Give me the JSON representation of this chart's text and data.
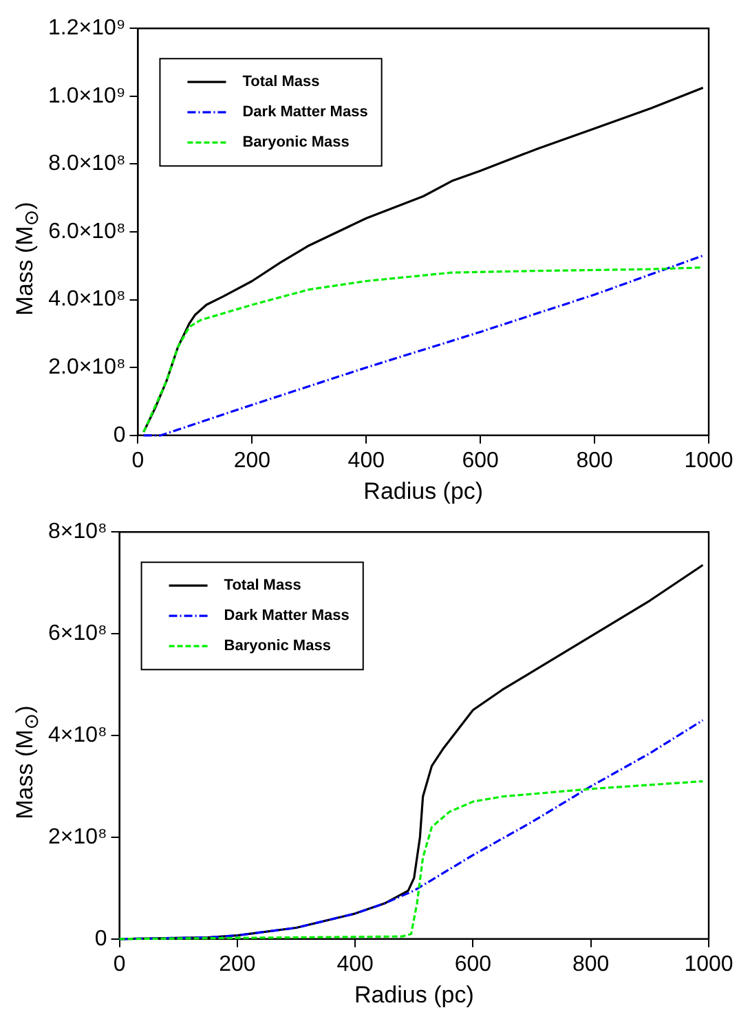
{
  "chart_data": [
    {
      "type": "line",
      "xlabel": "Radius (pc)",
      "ylabel": "Mass (M$_{⊙}$)",
      "legend": "top left",
      "grid": false,
      "marker": "none",
      "xlim": [
        0,
        1000
      ],
      "xticks": [
        0,
        200,
        400,
        600,
        800,
        1000
      ],
      "ylim": [
        0,
        1200000000
      ],
      "yticks": [
        {
          "value": 0,
          "label": "0"
        },
        {
          "value": 200000000,
          "label": "2.0×10⁸"
        },
        {
          "value": 400000000,
          "label": "4.0×10⁸"
        },
        {
          "value": 600000000,
          "label": "6.0×10⁸"
        },
        {
          "value": 800000000,
          "label": "8.0×10⁸"
        },
        {
          "value": 1000000000,
          "label": "1.0×10⁹"
        },
        {
          "value": 1200000000,
          "label": "1.2×10⁹"
        }
      ],
      "series": [
        {
          "name": "Total Mass",
          "color": "#000000",
          "line_style": "solid",
          "x": [
            10,
            30,
            50,
            70,
            90,
            100,
            120,
            150,
            200,
            250,
            300,
            400,
            500,
            550,
            600,
            700,
            800,
            900,
            990
          ],
          "values": [
            10000000,
            80000000,
            160000000,
            260000000,
            330000000,
            355000000,
            385000000,
            410000000,
            455000000,
            510000000,
            560000000,
            640000000,
            705000000,
            750000000,
            780000000,
            845000000,
            905000000,
            965000000,
            1025000000
          ]
        },
        {
          "name": "Dark Matter Mass",
          "color": "#0000ff",
          "line_style": "dotted",
          "x": [
            10,
            40,
            200,
            400,
            600,
            800,
            990
          ],
          "values": [
            0,
            0,
            90000000,
            200000000,
            305000000,
            415000000,
            530000000
          ]
        },
        {
          "name": "Baryonic Mass",
          "color": "#00ee00",
          "line_style": "dashed",
          "x": [
            10,
            50,
            70,
            90,
            110,
            150,
            200,
            300,
            400,
            550,
            700,
            900,
            990
          ],
          "values": [
            10000000,
            160000000,
            260000000,
            320000000,
            340000000,
            360000000,
            385000000,
            430000000,
            455000000,
            480000000,
            485000000,
            490000000,
            495000000
          ]
        }
      ]
    },
    {
      "type": "line",
      "xlabel": "Radius (pc)",
      "ylabel": "Mass (M$_{⊙}$)",
      "legend": "top left",
      "grid": false,
      "marker": "none",
      "xlim": [
        0,
        1000
      ],
      "xticks": [
        0,
        200,
        400,
        600,
        800,
        1000
      ],
      "ylim": [
        0,
        800000000
      ],
      "yticks": [
        {
          "value": 0,
          "label": "0"
        },
        {
          "value": 200000000,
          "label": "2×10⁸"
        },
        {
          "value": 400000000,
          "label": "4×10⁸"
        },
        {
          "value": 600000000,
          "label": "6×10⁸"
        },
        {
          "value": 800000000,
          "label": "8×10⁸"
        }
      ],
      "series": [
        {
          "name": "Total Mass",
          "color": "#000000",
          "line_style": "solid",
          "x": [
            0,
            150,
            200,
            300,
            400,
            450,
            490,
            500,
            510,
            515,
            530,
            550,
            600,
            650,
            700,
            800,
            900,
            990
          ],
          "values": [
            0,
            3000000,
            7000000,
            22000000,
            50000000,
            70000000,
            95000000,
            120000000,
            200000000,
            280000000,
            340000000,
            375000000,
            450000000,
            490000000,
            525000000,
            595000000,
            665000000,
            735000000
          ]
        },
        {
          "name": "Dark Matter Mass",
          "color": "#0000ff",
          "line_style": "dotted",
          "x": [
            0,
            150,
            200,
            300,
            400,
            450,
            500,
            550,
            600,
            700,
            800,
            900,
            990
          ],
          "values": [
            0,
            3000000,
            7000000,
            22000000,
            50000000,
            70000000,
            95000000,
            130000000,
            165000000,
            230000000,
            300000000,
            365000000,
            430000000
          ]
        },
        {
          "name": "Baryonic Mass",
          "color": "#00ee00",
          "line_style": "dashed",
          "x": [
            0,
            480,
            495,
            505,
            515,
            530,
            560,
            600,
            650,
            800,
            990
          ],
          "values": [
            0,
            5000000,
            10000000,
            70000000,
            160000000,
            220000000,
            250000000,
            270000000,
            280000000,
            295000000,
            310000000
          ]
        }
      ]
    }
  ]
}
